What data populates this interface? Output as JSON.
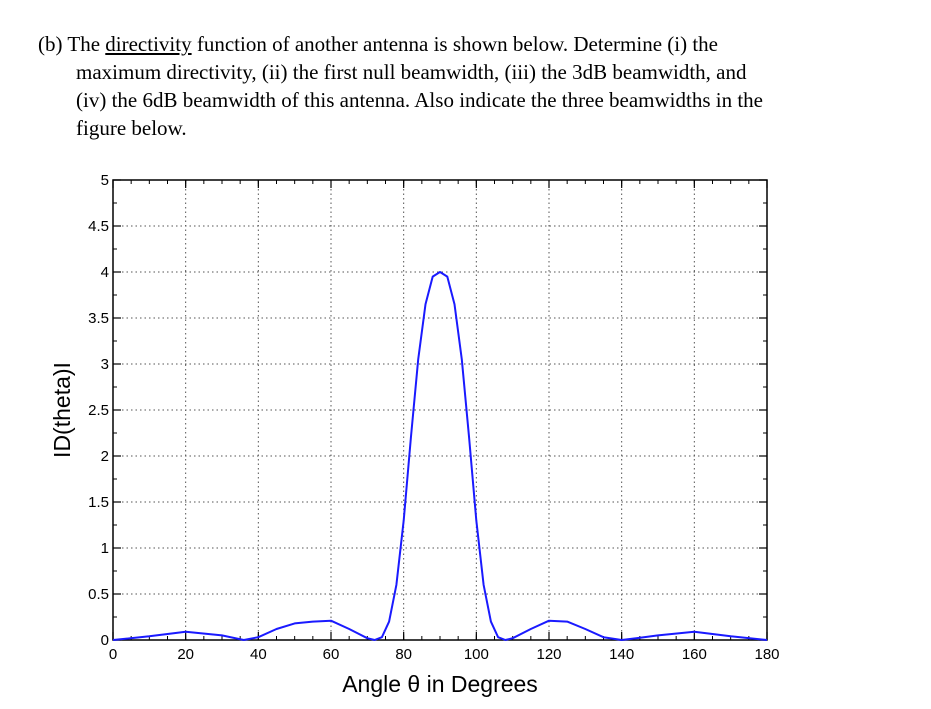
{
  "question": {
    "part": "(b)",
    "line1_before": "The ",
    "line1_underlined": "directivity",
    "line1_after": " function of another antenna is shown below.  Determine (i) the",
    "line2": "maximum directivity, (ii) the first null beamwidth, (iii) the 3dB beamwidth, and",
    "line3": "(iv) the 6dB beamwidth of this antenna. Also indicate the three beamwidths in the",
    "line4": "figure below."
  },
  "chart_data": {
    "type": "line",
    "xlabel": "Angle θ in Degrees",
    "ylabel": "ID(theta)I",
    "xlim": [
      0,
      180
    ],
    "ylim": [
      0,
      5
    ],
    "xticks": [
      "0",
      "20",
      "40",
      "60",
      "80",
      "100",
      "120",
      "140",
      "160",
      "180"
    ],
    "yticks": [
      "0",
      "0.5",
      "1",
      "1.5",
      "2",
      "2.5",
      "3",
      "3.5",
      "4",
      "4.5",
      "5"
    ],
    "grid": true,
    "line_color": "#1a1aff",
    "series": [
      {
        "x": [
          0,
          10,
          20,
          30,
          36,
          40,
          45,
          50,
          55,
          60,
          65,
          70,
          72,
          74,
          76,
          78,
          80,
          82,
          84,
          86,
          88,
          90,
          92,
          94,
          96,
          98,
          100,
          102,
          104,
          106,
          108,
          110,
          115,
          120,
          125,
          130,
          135,
          140,
          144,
          150,
          160,
          170,
          180
        ],
        "y": [
          0.0,
          0.04,
          0.09,
          0.05,
          0.0,
          0.03,
          0.12,
          0.18,
          0.2,
          0.21,
          0.12,
          0.02,
          0.0,
          0.03,
          0.2,
          0.6,
          1.3,
          2.2,
          3.05,
          3.65,
          3.95,
          4.0,
          3.95,
          3.65,
          3.05,
          2.2,
          1.3,
          0.6,
          0.2,
          0.03,
          0.0,
          0.02,
          0.12,
          0.21,
          0.2,
          0.12,
          0.03,
          0.0,
          0.02,
          0.05,
          0.09,
          0.04,
          0.0
        ]
      }
    ]
  }
}
